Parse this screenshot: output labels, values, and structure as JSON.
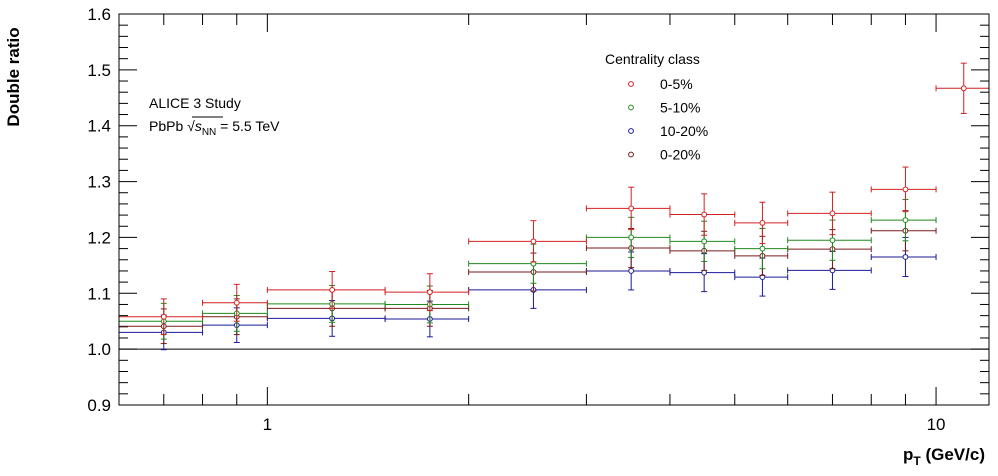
{
  "chart_data": {
    "type": "scatter",
    "xscale": "log",
    "xlim": [
      0.6,
      12.0
    ],
    "ylim": [
      0.9,
      1.6
    ],
    "xlabel": "p",
    "xlabel_sub": "T",
    "xlabel_unit": " (GeV/c)",
    "ylabel": "Double ratio",
    "x_ticks": [
      1,
      10
    ],
    "y_ticks": [
      0.9,
      1.0,
      1.1,
      1.2,
      1.3,
      1.4,
      1.5,
      1.6
    ],
    "reference_line": 1.0,
    "grid": false,
    "annotations": {
      "line1": "ALICE 3 Study",
      "line2_prefix": "PbPb ",
      "sqrt_symbol": "√",
      "s_symbol": "s",
      "nn_sub": "NN",
      "line2_suffix": " = 5.5 TeV"
    },
    "legend": {
      "title": "Centrality class",
      "placement": "top-right"
    },
    "series": [
      {
        "name": "0-5%",
        "color": "#d42020",
        "points": [
          {
            "x": 0.7,
            "xlo": 0.6,
            "xhi": 0.8,
            "y": 1.058,
            "err": 0.032
          },
          {
            "x": 0.9,
            "xlo": 0.8,
            "xhi": 1.0,
            "y": 1.083,
            "err": 0.033
          },
          {
            "x": 1.25,
            "xlo": 1.0,
            "xhi": 1.5,
            "y": 1.106,
            "err": 0.033
          },
          {
            "x": 1.75,
            "xlo": 1.5,
            "xhi": 2.0,
            "y": 1.102,
            "err": 0.033
          },
          {
            "x": 2.5,
            "xlo": 2.0,
            "xhi": 3.0,
            "y": 1.193,
            "err": 0.037
          },
          {
            "x": 3.5,
            "xlo": 3.0,
            "xhi": 4.0,
            "y": 1.252,
            "err": 0.038
          },
          {
            "x": 4.5,
            "xlo": 4.0,
            "xhi": 5.0,
            "y": 1.241,
            "err": 0.037
          },
          {
            "x": 5.5,
            "xlo": 5.0,
            "xhi": 6.0,
            "y": 1.226,
            "err": 0.037
          },
          {
            "x": 7.0,
            "xlo": 6.0,
            "xhi": 8.0,
            "y": 1.243,
            "err": 0.038
          },
          {
            "x": 9.0,
            "xlo": 8.0,
            "xhi": 10.0,
            "y": 1.286,
            "err": 0.04
          },
          {
            "x": 11.0,
            "xlo": 10.0,
            "xhi": 12.0,
            "y": 1.467,
            "err": 0.045
          }
        ]
      },
      {
        "name": "5-10%",
        "color": "#1f8a1f",
        "points": [
          {
            "x": 0.7,
            "xlo": 0.6,
            "xhi": 0.8,
            "y": 1.05,
            "err": 0.032
          },
          {
            "x": 0.9,
            "xlo": 0.8,
            "xhi": 1.0,
            "y": 1.064,
            "err": 0.032
          },
          {
            "x": 1.25,
            "xlo": 1.0,
            "xhi": 1.5,
            "y": 1.081,
            "err": 0.033
          },
          {
            "x": 1.75,
            "xlo": 1.5,
            "xhi": 2.0,
            "y": 1.08,
            "err": 0.033
          },
          {
            "x": 2.5,
            "xlo": 2.0,
            "xhi": 3.0,
            "y": 1.153,
            "err": 0.035
          },
          {
            "x": 3.5,
            "xlo": 3.0,
            "xhi": 4.0,
            "y": 1.2,
            "err": 0.036
          },
          {
            "x": 4.5,
            "xlo": 4.0,
            "xhi": 5.0,
            "y": 1.193,
            "err": 0.036
          },
          {
            "x": 5.5,
            "xlo": 5.0,
            "xhi": 6.0,
            "y": 1.18,
            "err": 0.036
          },
          {
            "x": 7.0,
            "xlo": 6.0,
            "xhi": 8.0,
            "y": 1.195,
            "err": 0.036
          },
          {
            "x": 9.0,
            "xlo": 8.0,
            "xhi": 10.0,
            "y": 1.231,
            "err": 0.037
          }
        ]
      },
      {
        "name": "10-20%",
        "color": "#1a1a9a",
        "points": [
          {
            "x": 0.7,
            "xlo": 0.6,
            "xhi": 0.8,
            "y": 1.03,
            "err": 0.031
          },
          {
            "x": 0.9,
            "xlo": 0.8,
            "xhi": 1.0,
            "y": 1.043,
            "err": 0.031
          },
          {
            "x": 1.25,
            "xlo": 1.0,
            "xhi": 1.5,
            "y": 1.055,
            "err": 0.032
          },
          {
            "x": 1.75,
            "xlo": 1.5,
            "xhi": 2.0,
            "y": 1.054,
            "err": 0.032
          },
          {
            "x": 2.5,
            "xlo": 2.0,
            "xhi": 3.0,
            "y": 1.106,
            "err": 0.033
          },
          {
            "x": 3.5,
            "xlo": 3.0,
            "xhi": 4.0,
            "y": 1.14,
            "err": 0.034
          },
          {
            "x": 4.5,
            "xlo": 4.0,
            "xhi": 5.0,
            "y": 1.137,
            "err": 0.034
          },
          {
            "x": 5.5,
            "xlo": 5.0,
            "xhi": 6.0,
            "y": 1.129,
            "err": 0.034
          },
          {
            "x": 7.0,
            "xlo": 6.0,
            "xhi": 8.0,
            "y": 1.141,
            "err": 0.034
          },
          {
            "x": 9.0,
            "xlo": 8.0,
            "xhi": 10.0,
            "y": 1.165,
            "err": 0.035
          }
        ]
      },
      {
        "name": "0-20%",
        "color": "#7a1a1a",
        "points": [
          {
            "x": 0.7,
            "xlo": 0.6,
            "xhi": 0.8,
            "y": 1.041,
            "err": 0.031
          },
          {
            "x": 0.9,
            "xlo": 0.8,
            "xhi": 1.0,
            "y": 1.058,
            "err": 0.032
          },
          {
            "x": 1.25,
            "xlo": 1.0,
            "xhi": 1.5,
            "y": 1.073,
            "err": 0.032
          },
          {
            "x": 1.75,
            "xlo": 1.5,
            "xhi": 2.0,
            "y": 1.073,
            "err": 0.032
          },
          {
            "x": 2.5,
            "xlo": 2.0,
            "xhi": 3.0,
            "y": 1.138,
            "err": 0.034
          },
          {
            "x": 3.5,
            "xlo": 3.0,
            "xhi": 4.0,
            "y": 1.181,
            "err": 0.035
          },
          {
            "x": 4.5,
            "xlo": 4.0,
            "xhi": 5.0,
            "y": 1.176,
            "err": 0.035
          },
          {
            "x": 5.5,
            "xlo": 5.0,
            "xhi": 6.0,
            "y": 1.167,
            "err": 0.035
          },
          {
            "x": 7.0,
            "xlo": 6.0,
            "xhi": 8.0,
            "y": 1.179,
            "err": 0.035
          },
          {
            "x": 9.0,
            "xlo": 8.0,
            "xhi": 10.0,
            "y": 1.212,
            "err": 0.036
          }
        ]
      }
    ]
  }
}
